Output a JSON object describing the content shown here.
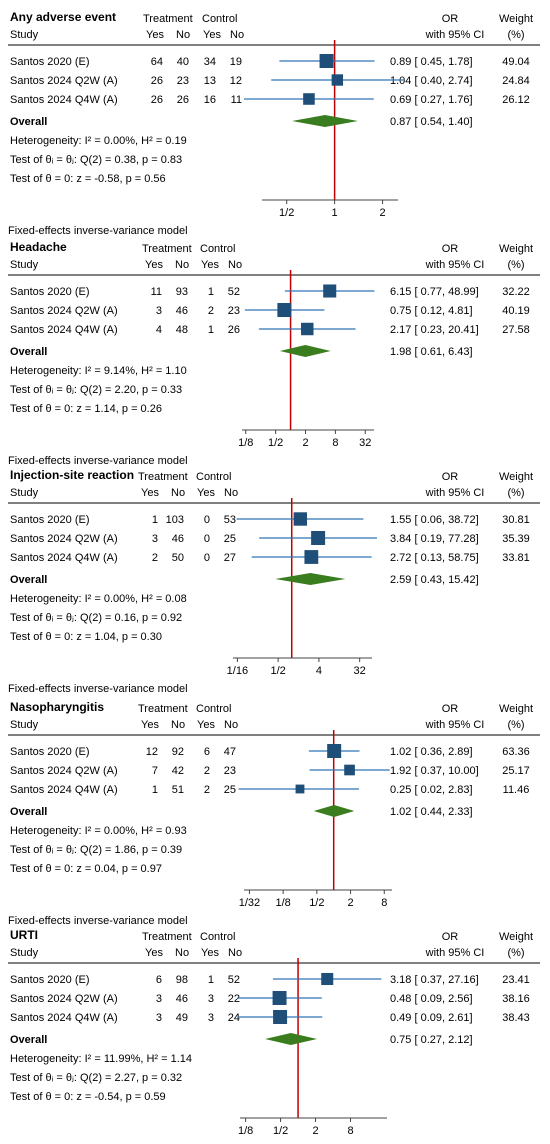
{
  "headers": {
    "study": "Study",
    "treatment": "Treatment",
    "control": "Control",
    "yes": "Yes",
    "no": "No",
    "or": "OR",
    "ci": "with 95% CI",
    "weight": "Weight",
    "weight_unit": "(%)"
  },
  "colors": {
    "marker": "#1f4e79",
    "diamond": "#3a7d1e",
    "null_line": "#c00000",
    "ci_line": "#2e75b6",
    "rule": "#000000"
  },
  "chart_data": [
    {
      "type": "forest",
      "title": "Any adverse event",
      "scale": "log",
      "xlim": [
        0.35,
        2.5
      ],
      "ticks": [
        0.5,
        1,
        2
      ],
      "tick_labels": [
        "1/2",
        "1",
        "2"
      ],
      "null_value": 1,
      "studies": [
        {
          "name": "Santos 2020 (E)",
          "t_yes": "64",
          "t_no": "40",
          "c_yes": "34",
          "c_no": "19",
          "or": 0.89,
          "lo": 0.45,
          "hi": 1.78,
          "weight": 49.04,
          "or_text": "0.89 [  0.45,  1.78]",
          "weight_text": "49.04"
        },
        {
          "name": "Santos 2024 Q2W (A)",
          "t_yes": "26",
          "t_no": "23",
          "c_yes": "13",
          "c_no": "12",
          "or": 1.04,
          "lo": 0.4,
          "hi": 2.74,
          "weight": 24.84,
          "or_text": "1.04 [  0.40,  2.74]",
          "weight_text": "24.84"
        },
        {
          "name": "Santos 2024 Q4W (A)",
          "t_yes": "26",
          "t_no": "26",
          "c_yes": "16",
          "c_no": "11",
          "or": 0.69,
          "lo": 0.27,
          "hi": 1.76,
          "weight": 26.12,
          "or_text": "0.69 [  0.27,  1.76]",
          "weight_text": "26.12"
        }
      ],
      "overall": {
        "label": "Overall",
        "or": 0.87,
        "lo": 0.54,
        "hi": 1.4,
        "or_text": "0.87 [  0.54,  1.40]"
      },
      "heterogeneity": "Heterogeneity: I² = 0.00%, H² = 0.19",
      "test_theta": "Test of θᵢ = θⱼ: Q(2) = 0.38, p = 0.83",
      "test_zero": "Test of θ = 0: z = -0.58, p = 0.56",
      "model": "Fixed-effects inverse-variance model"
    },
    {
      "type": "forest",
      "title": "Headache",
      "scale": "log",
      "xlim": [
        0.105,
        48
      ],
      "ticks": [
        0.125,
        0.5,
        2,
        8,
        32
      ],
      "tick_labels": [
        "1/8",
        "1/2",
        "2",
        "8",
        "32"
      ],
      "null_value": 1,
      "studies": [
        {
          "name": "Santos 2020 (E)",
          "t_yes": "11",
          "t_no": "93",
          "c_yes": "1",
          "c_no": "52",
          "or": 6.15,
          "lo": 0.77,
          "hi": 48.99,
          "weight": 32.22,
          "or_text": "6.15 [  0.77,  48.99]",
          "weight_text": "32.22"
        },
        {
          "name": "Santos 2024 Q2W (A)",
          "t_yes": "3",
          "t_no": "46",
          "c_yes": "2",
          "c_no": "23",
          "or": 0.75,
          "lo": 0.12,
          "hi": 4.81,
          "weight": 40.19,
          "or_text": "0.75 [  0.12,  4.81]",
          "weight_text": "40.19"
        },
        {
          "name": "Santos 2024 Q4W (A)",
          "t_yes": "4",
          "t_no": "48",
          "c_yes": "1",
          "c_no": "26",
          "or": 2.17,
          "lo": 0.23,
          "hi": 20.41,
          "weight": 27.58,
          "or_text": "2.17 [  0.23,  20.41]",
          "weight_text": "27.58"
        }
      ],
      "overall": {
        "label": "Overall",
        "or": 1.98,
        "lo": 0.61,
        "hi": 6.43,
        "or_text": "1.98 [  0.61,  6.43]"
      },
      "heterogeneity": "Heterogeneity: I² = 9.14%, H² = 1.10",
      "test_theta": "Test of θᵢ = θⱼ: Q(2) = 2.20, p = 0.33",
      "test_zero": "Test of θ = 0: z = 1.14, p = 0.26",
      "model": "Fixed-effects inverse-variance model"
    },
    {
      "type": "forest",
      "title": "Injection-site reaction",
      "scale": "log",
      "xlim": [
        0.05,
        60
      ],
      "ticks": [
        0.0625,
        0.5,
        4,
        32
      ],
      "tick_labels": [
        "1/16",
        "1/2",
        "4",
        "32"
      ],
      "null_value": 1,
      "studies": [
        {
          "name": "Santos 2020 (E)",
          "t_yes": "1",
          "t_no": "103",
          "c_yes": "0",
          "c_no": "53",
          "or": 1.55,
          "lo": 0.06,
          "hi": 38.72,
          "weight": 30.81,
          "or_text": "1.55 [  0.06,  38.72]",
          "weight_text": "30.81"
        },
        {
          "name": "Santos 2024 Q2W (A)",
          "t_yes": "3",
          "t_no": "46",
          "c_yes": "0",
          "c_no": "25",
          "or": 3.84,
          "lo": 0.19,
          "hi": 77.28,
          "weight": 35.39,
          "or_text": "3.84 [  0.19,  77.28]",
          "weight_text": "35.39"
        },
        {
          "name": "Santos 2024 Q4W (A)",
          "t_yes": "2",
          "t_no": "50",
          "c_yes": "0",
          "c_no": "27",
          "or": 2.72,
          "lo": 0.13,
          "hi": 58.75,
          "weight": 33.81,
          "or_text": "2.72 [  0.13,  58.75]",
          "weight_text": "33.81"
        }
      ],
      "overall": {
        "label": "Overall",
        "or": 2.59,
        "lo": 0.43,
        "hi": 15.42,
        "or_text": "2.59 [  0.43,  15.42]"
      },
      "heterogeneity": "Heterogeneity: I² = 0.00%, H² = 0.08",
      "test_theta": "Test of θᵢ = θⱼ: Q(2) = 0.16, p = 0.92",
      "test_zero": "Test of θ = 0: z = 1.04, p = 0.30",
      "model": "Fixed-effects inverse-variance model"
    },
    {
      "type": "forest",
      "title": "Nasopharyngitis",
      "scale": "log",
      "xlim": [
        0.025,
        11
      ],
      "ticks": [
        0.03125,
        0.125,
        0.5,
        2,
        8
      ],
      "tick_labels": [
        "1/32",
        "1/8",
        "1/2",
        "2",
        "8"
      ],
      "null_value": 1,
      "studies": [
        {
          "name": "Santos 2020 (E)",
          "t_yes": "12",
          "t_no": "92",
          "c_yes": "6",
          "c_no": "47",
          "or": 1.02,
          "lo": 0.36,
          "hi": 2.89,
          "weight": 63.36,
          "or_text": "1.02 [  0.36,  2.89]",
          "weight_text": "63.36"
        },
        {
          "name": "Santos 2024 Q2W (A)",
          "t_yes": "7",
          "t_no": "42",
          "c_yes": "2",
          "c_no": "23",
          "or": 1.92,
          "lo": 0.37,
          "hi": 10.0,
          "weight": 25.17,
          "or_text": "1.92 [  0.37,  10.00]",
          "weight_text": "25.17"
        },
        {
          "name": "Santos 2024 Q4W (A)",
          "t_yes": "1",
          "t_no": "51",
          "c_yes": "2",
          "c_no": "25",
          "or": 0.25,
          "lo": 0.02,
          "hi": 2.83,
          "weight": 11.46,
          "or_text": "0.25 [  0.02,  2.83]",
          "weight_text": "11.46"
        }
      ],
      "overall": {
        "label": "Overall",
        "or": 1.02,
        "lo": 0.44,
        "hi": 2.33,
        "or_text": "1.02 [  0.44,  2.33]"
      },
      "heterogeneity": "Heterogeneity: I² = 0.00%, H² = 0.93",
      "test_theta": "Test of θᵢ = θⱼ: Q(2) = 1.86, p = 0.39",
      "test_zero": "Test of θ = 0: z = 0.04, p = 0.97",
      "model": "Fixed-effects inverse-variance model"
    },
    {
      "type": "forest",
      "title": "URTI",
      "scale": "log",
      "xlim": [
        0.1,
        34
      ],
      "ticks": [
        0.125,
        0.5,
        2,
        8
      ],
      "tick_labels": [
        "1/8",
        "1/2",
        "2",
        "8"
      ],
      "null_value": 1,
      "studies": [
        {
          "name": "Santos 2020 (E)",
          "t_yes": "6",
          "t_no": "98",
          "c_yes": "1",
          "c_no": "52",
          "or": 3.18,
          "lo": 0.37,
          "hi": 27.16,
          "weight": 23.41,
          "or_text": "3.18 [  0.37,  27.16]",
          "weight_text": "23.41"
        },
        {
          "name": "Santos 2024 Q2W (A)",
          "t_yes": "3",
          "t_no": "46",
          "c_yes": "3",
          "c_no": "22",
          "or": 0.48,
          "lo": 0.09,
          "hi": 2.56,
          "weight": 38.16,
          "or_text": "0.48 [  0.09,  2.56]",
          "weight_text": "38.16"
        },
        {
          "name": "Santos 2024 Q4W (A)",
          "t_yes": "3",
          "t_no": "49",
          "c_yes": "3",
          "c_no": "24",
          "or": 0.49,
          "lo": 0.09,
          "hi": 2.61,
          "weight": 38.43,
          "or_text": "0.49 [  0.09,  2.61]",
          "weight_text": "38.43"
        }
      ],
      "overall": {
        "label": "Overall",
        "or": 0.75,
        "lo": 0.27,
        "hi": 2.12,
        "or_text": "0.75 [  0.27,  2.12]"
      },
      "heterogeneity": "Heterogeneity: I² = 11.99%, H² = 1.14",
      "test_theta": "Test of θᵢ = θⱼ: Q(2) = 2.27, p = 0.32",
      "test_zero": "Test of θ = 0: z = -0.54, p = 0.59",
      "model": "Fixed-effects inverse-variance model"
    }
  ]
}
